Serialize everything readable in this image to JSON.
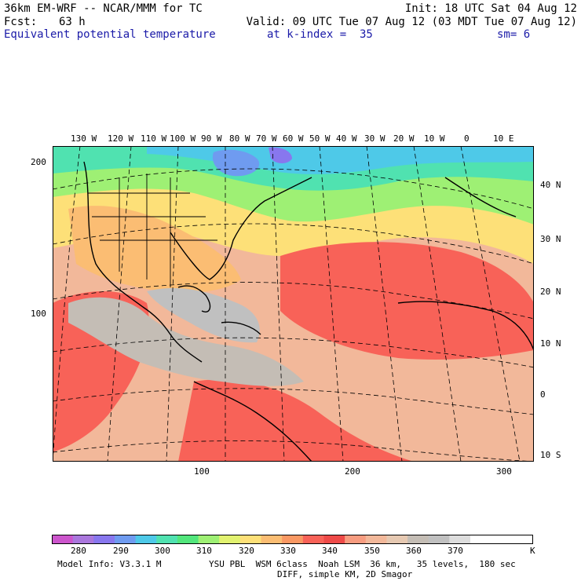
{
  "header": {
    "title": "36km EM-WRF -- NCAR/MMM for TC",
    "init": "Init: 18 UTC Sat 04 Aug 12",
    "fcst_label": "Fcst:",
    "fcst_value": "63 h",
    "valid": "Valid: 09 UTC Tue 07 Aug 12 (03 MDT Tue 07 Aug 12)",
    "field": "Equivalent potential temperature",
    "kindex": "at k-index =  35",
    "sm": "sm= 6"
  },
  "map": {
    "top_lon_labels": [
      "130 W",
      "120 W",
      "110 W",
      "100 W",
      "90 W",
      "80 W",
      "70 W",
      "60 W",
      "50 W",
      "40 W",
      "30 W",
      "20 W",
      "10 W",
      "0",
      "10 E"
    ],
    "right_lat_labels": [
      "40 N",
      "30 N",
      "20 N",
      "10 N",
      "0",
      "10 S"
    ],
    "left_grid_labels": [
      "200",
      "100"
    ],
    "bottom_grid_labels": [
      "100",
      "200",
      "300"
    ]
  },
  "colorbar": {
    "colors": [
      "#cc55cc",
      "#aa77dd",
      "#8877ee",
      "#6f9bf0",
      "#4ec9e8",
      "#50e2b0",
      "#52e67c",
      "#9ef074",
      "#e2f270",
      "#fde078",
      "#fbbd73",
      "#f99863",
      "#f86258",
      "#ee4a48",
      "#f79c80",
      "#f2b89a",
      "#e6c9b2",
      "#c4bdb5",
      "#c0c0c0",
      "#dddddd",
      "#ffffff",
      "#ffffff",
      "#ffffff"
    ],
    "labels": [
      "280",
      "290",
      "300",
      "310",
      "320",
      "330",
      "340",
      "350",
      "360",
      "370"
    ],
    "unit": "K"
  },
  "footer": {
    "model_info": "Model Info: V3.3.1 M",
    "physics": "YSU PBL  WSM 6class  Noah LSM  36 km,   35 levels,  180 sec",
    "diff": "DIFF, simple KM, 2D Smagor"
  }
}
